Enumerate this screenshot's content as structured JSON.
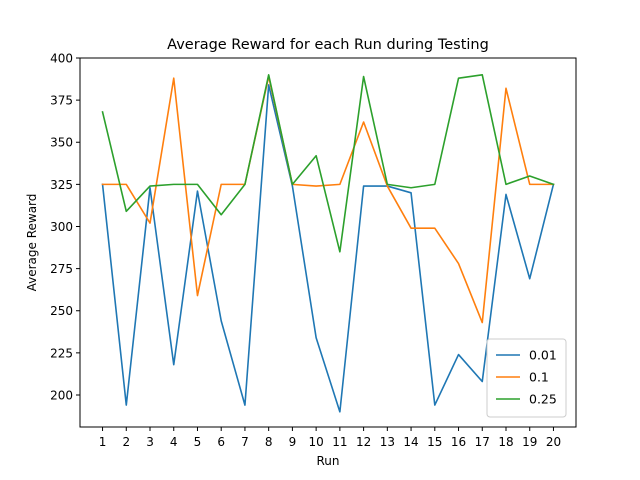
{
  "chart_data": {
    "type": "line",
    "title": "Average Reward for each Run during Testing",
    "xlabel": "Run",
    "ylabel": "Average Reward",
    "x": [
      1,
      2,
      3,
      4,
      5,
      6,
      7,
      8,
      9,
      10,
      11,
      12,
      13,
      14,
      15,
      16,
      17,
      18,
      19,
      20
    ],
    "xticks": [
      "1",
      "2",
      "3",
      "4",
      "5",
      "6",
      "7",
      "8",
      "9",
      "10",
      "11",
      "12",
      "13",
      "14",
      "15",
      "16",
      "17",
      "18",
      "19",
      "20"
    ],
    "yticks": [
      200,
      225,
      250,
      275,
      300,
      325,
      350,
      375,
      400
    ],
    "ylim": [
      181,
      400
    ],
    "xlim": [
      0.05,
      20.95
    ],
    "grid": false,
    "legend_position": "lower right",
    "series": [
      {
        "name": "0.01",
        "color": "#1f77b4",
        "values": [
          325,
          194,
          323,
          218,
          321,
          244,
          194,
          384,
          324,
          234,
          190,
          324,
          324,
          320,
          194,
          224,
          208,
          319,
          269,
          325
        ]
      },
      {
        "name": "0.1",
        "color": "#ff7f0e",
        "values": [
          325,
          325,
          302,
          388,
          259,
          325,
          325,
          389,
          325,
          324,
          325,
          362,
          324,
          299,
          299,
          278,
          243,
          382,
          325,
          325
        ]
      },
      {
        "name": "0.25",
        "color": "#2ca02c",
        "values": [
          368,
          309,
          324,
          325,
          325,
          307,
          325,
          390,
          325,
          342,
          285,
          389,
          325,
          323,
          325,
          388,
          390,
          325,
          330,
          325
        ]
      }
    ]
  }
}
